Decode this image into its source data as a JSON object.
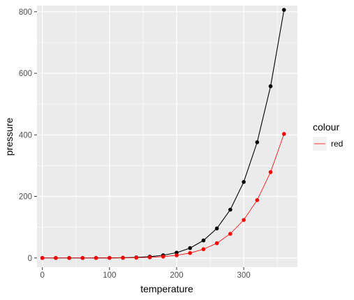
{
  "chart_data": {
    "type": "line",
    "xlabel": "temperature",
    "ylabel": "pressure",
    "xlim": [
      -8,
      380
    ],
    "ylim": [
      -30,
      820
    ],
    "xticks": [
      0,
      100,
      200,
      300
    ],
    "yticks": [
      0,
      200,
      400,
      600,
      800
    ],
    "xtick_labels": [
      "0",
      "100",
      "200",
      "300"
    ],
    "ytick_labels": [
      "0",
      "200",
      "400",
      "600",
      "800"
    ],
    "grid": true,
    "legend": {
      "title": "colour",
      "position": "right",
      "entries": [
        {
          "label": "red",
          "color": "#ff0000"
        }
      ]
    },
    "x": [
      0,
      20,
      40,
      60,
      80,
      100,
      120,
      140,
      160,
      180,
      200,
      220,
      240,
      260,
      280,
      300,
      320,
      340,
      360
    ],
    "series": [
      {
        "color": "#000000",
        "values": [
          0.0002,
          0.0012,
          0.006,
          0.03,
          0.09,
          0.27,
          0.75,
          1.85,
          4.2,
          8.8,
          17.3,
          32.1,
          57.0,
          96.0,
          157.0,
          247.0,
          376.0,
          558.0,
          806.0
        ]
      },
      {
        "name": "red",
        "color": "#ff0000",
        "values": [
          0.0001,
          0.0006,
          0.003,
          0.015,
          0.045,
          0.135,
          0.375,
          0.925,
          2.1,
          4.4,
          8.65,
          16.05,
          28.5,
          48.0,
          78.5,
          123.5,
          188.0,
          279.0,
          403.0
        ]
      }
    ]
  }
}
